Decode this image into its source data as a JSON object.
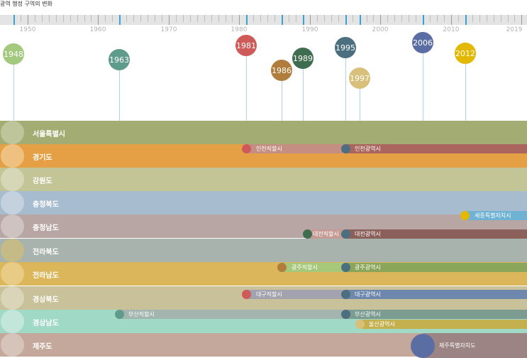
{
  "title": "광역 행정 구역의 변화",
  "axis_years": [
    "1950",
    "1960",
    "1970",
    "1980",
    "1990",
    "2000",
    "2010",
    "2019"
  ],
  "events": [
    {
      "year": "1948",
      "color": "#a3c97f"
    },
    {
      "year": "1963",
      "color": "#5f9b8b"
    },
    {
      "year": "1981",
      "color": "#cf5a5a"
    },
    {
      "year": "1986",
      "color": "#b07d3c"
    },
    {
      "year": "1989",
      "color": "#3f6d4f"
    },
    {
      "year": "1995",
      "color": "#4b6f7f"
    },
    {
      "year": "1997",
      "color": "#d9c07a"
    },
    {
      "year": "2006",
      "color": "#5b6ea4"
    },
    {
      "year": "2012",
      "color": "#e2b800"
    }
  ],
  "provinces": [
    {
      "name": "서울특별시",
      "color": "#a3ac72",
      "circle": "#bfc59b"
    },
    {
      "name": "경기도",
      "color": "#e5a045",
      "circle": "#efc181"
    },
    {
      "name": "강원도",
      "color": "#c3c596",
      "circle": "#d5d7b6"
    },
    {
      "name": "충청북도",
      "color": "#a7bccf",
      "circle": "#c4d2df"
    },
    {
      "name": "충청남도",
      "color": "#b8a6a4",
      "circle": "#cfc3c1"
    },
    {
      "name": "전라북도",
      "color": "#a8b3ad",
      "circle": "#c5bb86"
    },
    {
      "name": "전라남도",
      "color": "#dbb65a",
      "circle": "#e8cc86"
    },
    {
      "name": "경상북도",
      "color": "#c8c199",
      "circle": "#dad5b8"
    },
    {
      "name": "경상남도",
      "color": "#a1d9c7",
      "circle": "#c2e6da"
    },
    {
      "name": "제주도",
      "color": "#c4a89c",
      "circle": "#d6c3ba"
    }
  ],
  "segments": [
    {
      "label": "인천직할시",
      "color": "#c48e83",
      "dot": "#cf5a5a"
    },
    {
      "label": "인천광역시",
      "color": "#a9655e",
      "dot": "#4b6f7f"
    },
    {
      "label": "세종특별자치시",
      "color": "#6fb2d3",
      "dot": "#e2b800"
    },
    {
      "label": "대전직할시",
      "color": "#c79b95",
      "dot": "#3f6d4f"
    },
    {
      "label": "대전광역시",
      "color": "#8b5f5a",
      "dot": "#4b6f7f"
    },
    {
      "label": "광주직할시",
      "color": "#a7c77b",
      "dot": "#b07d3c"
    },
    {
      "label": "광주광역시",
      "color": "#8ba65a",
      "dot": "#4b6f7f"
    },
    {
      "label": "대구직할시",
      "color": "#a2a3ae",
      "dot": "#cf5a5a"
    },
    {
      "label": "대구광역시",
      "color": "#6e88ad",
      "dot": "#4b6f7f"
    },
    {
      "label": "부산직할시",
      "color": "#a3b5ae",
      "dot": "#5f9b8b"
    },
    {
      "label": "부산광역시",
      "color": "#7c9c92",
      "dot": "#4b6f7f"
    },
    {
      "label": "울산광역시",
      "color": "#c4b04e",
      "dot": "#d9c07a"
    },
    {
      "label": "제주특별자치도",
      "color": "#9c8484",
      "dot": "#5b6ea4"
    }
  ]
}
